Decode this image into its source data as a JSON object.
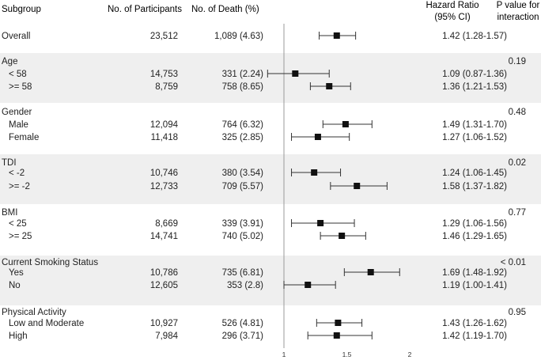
{
  "headers": {
    "subgroup": "Subgroup",
    "participants": "No. of Participants",
    "deaths": "No. of Death (%)",
    "hr_line1": "Hazard Ratio",
    "hr_line2": "(95% CI)",
    "p_line1": "P value for",
    "p_line2": "interaction"
  },
  "chart_data": {
    "type": "forest",
    "x_axis": {
      "ticks": [
        1,
        1.5,
        2
      ],
      "tick_labels": [
        "1",
        "1.5",
        "2"
      ],
      "reference_line": 1,
      "range": [
        1,
        2
      ]
    },
    "groups": [
      {
        "title": "Overall",
        "shaded": false,
        "p_value": "",
        "rows": [
          {
            "label": "Overall",
            "participants": "23,512",
            "deaths": "1,089 (4.63)",
            "hr_text": "1.42 (1.28-1.57)",
            "hr": 1.42,
            "lo": 1.28,
            "hi": 1.57
          }
        ]
      },
      {
        "title": "Age",
        "shaded": true,
        "p_value": "0.19",
        "rows": [
          {
            "label": "< 58",
            "participants": "14,753",
            "deaths": "331 (2.24)",
            "hr_text": "1.09 (0.87-1.36)",
            "hr": 1.09,
            "lo": 0.87,
            "hi": 1.36
          },
          {
            "label": ">= 58",
            "participants": "8,759",
            "deaths": "758 (8.65)",
            "hr_text": "1.36 (1.21-1.53)",
            "hr": 1.36,
            "lo": 1.21,
            "hi": 1.53
          }
        ]
      },
      {
        "title": "Gender",
        "shaded": false,
        "p_value": "0.48",
        "rows": [
          {
            "label": "Male",
            "participants": "12,094",
            "deaths": "764 (6.32)",
            "hr_text": "1.49 (1.31-1.70)",
            "hr": 1.49,
            "lo": 1.31,
            "hi": 1.7
          },
          {
            "label": "Female",
            "participants": "11,418",
            "deaths": "325 (2.85)",
            "hr_text": "1.27 (1.06-1.52)",
            "hr": 1.27,
            "lo": 1.06,
            "hi": 1.52
          }
        ]
      },
      {
        "title": "TDI",
        "shaded": true,
        "p_value": "0.02",
        "rows": [
          {
            "label": "< -2",
            "participants": "10,746",
            "deaths": "380 (3.54)",
            "hr_text": "1.24 (1.06-1.45)",
            "hr": 1.24,
            "lo": 1.06,
            "hi": 1.45
          },
          {
            "label": ">= -2",
            "participants": "12,733",
            "deaths": "709 (5.57)",
            "hr_text": "1.58 (1.37-1.82)",
            "hr": 1.58,
            "lo": 1.37,
            "hi": 1.82
          }
        ]
      },
      {
        "title": "BMI",
        "shaded": false,
        "p_value": "0.77",
        "rows": [
          {
            "label": "< 25",
            "participants": "8,669",
            "deaths": "339 (3.91)",
            "hr_text": "1.29 (1.06-1.56)",
            "hr": 1.29,
            "lo": 1.06,
            "hi": 1.56
          },
          {
            "label": ">= 25",
            "participants": "14,741",
            "deaths": "740 (5.02)",
            "hr_text": "1.46 (1.29-1.65)",
            "hr": 1.46,
            "lo": 1.29,
            "hi": 1.65
          }
        ]
      },
      {
        "title": "Current Smoking Status",
        "shaded": true,
        "p_value": "< 0.01",
        "rows": [
          {
            "label": "Yes",
            "participants": "10,786",
            "deaths": "735 (6.81)",
            "hr_text": "1.69 (1.48-1.92)",
            "hr": 1.69,
            "lo": 1.48,
            "hi": 1.92
          },
          {
            "label": "No",
            "participants": "12,605",
            "deaths": "353 (2.8)",
            "hr_text": "1.19 (1.00-1.41)",
            "hr": 1.19,
            "lo": 1.0,
            "hi": 1.41
          }
        ]
      },
      {
        "title": "Physical Activity",
        "shaded": false,
        "p_value": "0.95",
        "rows": [
          {
            "label": "Low and Moderate",
            "participants": "10,927",
            "deaths": "526 (4.81)",
            "hr_text": "1.43 (1.26-1.62)",
            "hr": 1.43,
            "lo": 1.26,
            "hi": 1.62
          },
          {
            "label": "High",
            "participants": "7,984",
            "deaths": "296 (3.71)",
            "hr_text": "1.42 (1.19-1.70)",
            "hr": 1.42,
            "lo": 1.19,
            "hi": 1.7
          }
        ]
      }
    ],
    "colors": {
      "shade": "#efefef",
      "marker": "#111111",
      "line": "#333333",
      "ref_line": "#999999",
      "text": "#222222"
    }
  }
}
